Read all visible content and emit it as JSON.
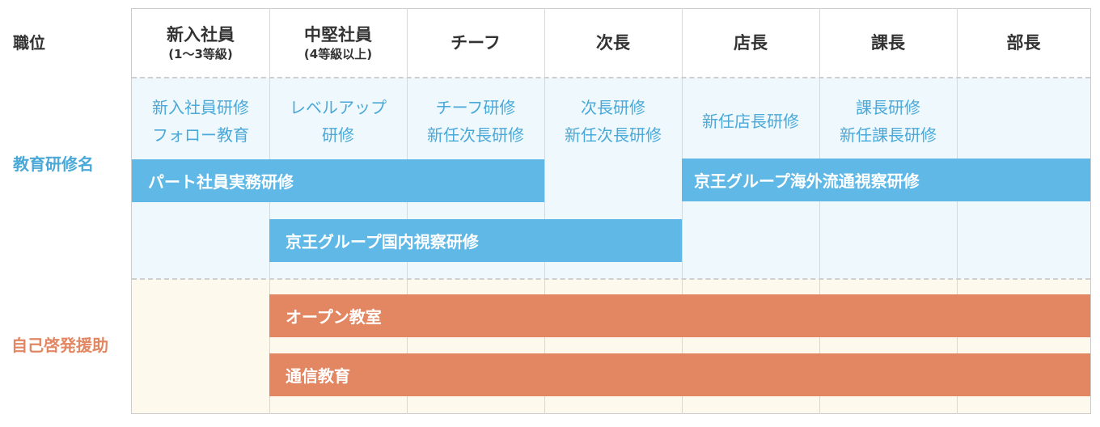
{
  "row_labels": {
    "position": "職位",
    "education": "教育研修名",
    "self_development": "自己啓発援助"
  },
  "columns": [
    {
      "title": "新入社員",
      "subtitle": "(1〜3等級)"
    },
    {
      "title": "中堅社員",
      "subtitle": "(4等級以上)"
    },
    {
      "title": "チーフ",
      "subtitle": ""
    },
    {
      "title": "次長",
      "subtitle": ""
    },
    {
      "title": "店長",
      "subtitle": ""
    },
    {
      "title": "課長",
      "subtitle": ""
    },
    {
      "title": "部長",
      "subtitle": ""
    }
  ],
  "courses": [
    {
      "line1": "新入社員研修",
      "line2": "フォロー教育"
    },
    {
      "line1": "レベルアップ",
      "line2": "研修"
    },
    {
      "line1": "チーフ研修",
      "line2": "新任次長研修"
    },
    {
      "line1": "次長研修",
      "line2": "新任次長研修"
    },
    {
      "line1": "新任店長研修",
      "line2": ""
    },
    {
      "line1": "課長研修",
      "line2": "新任課長研修"
    },
    {
      "line1": "",
      "line2": ""
    }
  ],
  "bars": {
    "part_training": "パート社員実務研修",
    "overseas_inspection": "京王グループ海外流通視察研修",
    "domestic_inspection": "京王グループ国内視察研修",
    "open_classroom": "オープン教室",
    "correspondence": "通信教育"
  },
  "colors": {
    "header_text": "#333333",
    "education_label": "#4aa9d8",
    "self_label": "#e38662",
    "education_bg": "#eef8fd",
    "self_bg": "#fdf9ec",
    "blue_bar": "#5fb8e6",
    "orange_bar": "#e38662"
  }
}
